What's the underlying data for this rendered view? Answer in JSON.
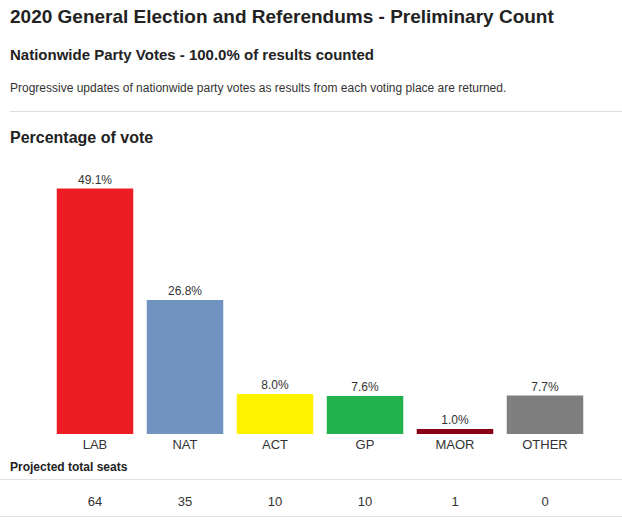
{
  "header": {
    "title": "2020 General Election and Referendums - Preliminary Count",
    "subtitle": "Nationwide Party Votes - 100.0% of results counted",
    "description": "Progressive updates of nationwide party votes as results from each voting place are returned."
  },
  "chart_data": {
    "type": "bar",
    "title": "Percentage of vote",
    "categories": [
      "LAB",
      "NAT",
      "ACT",
      "GP",
      "MAOR",
      "OTHER"
    ],
    "values": [
      49.1,
      26.8,
      8.0,
      7.6,
      1.0,
      7.7
    ],
    "value_labels": [
      "49.1%",
      "26.8%",
      "8.0%",
      "7.6%",
      "1.0%",
      "7.7%"
    ],
    "colors": [
      "#ee1c25",
      "#7093c0",
      "#fff200",
      "#22b14c",
      "#880015",
      "#7f7f7f"
    ],
    "ylim": [
      0,
      55
    ],
    "data_labels": true,
    "tick_labels": "x",
    "grid": false
  },
  "seats_table": {
    "title": "Projected total seats",
    "values": [
      64,
      35,
      10,
      10,
      1,
      0
    ]
  }
}
